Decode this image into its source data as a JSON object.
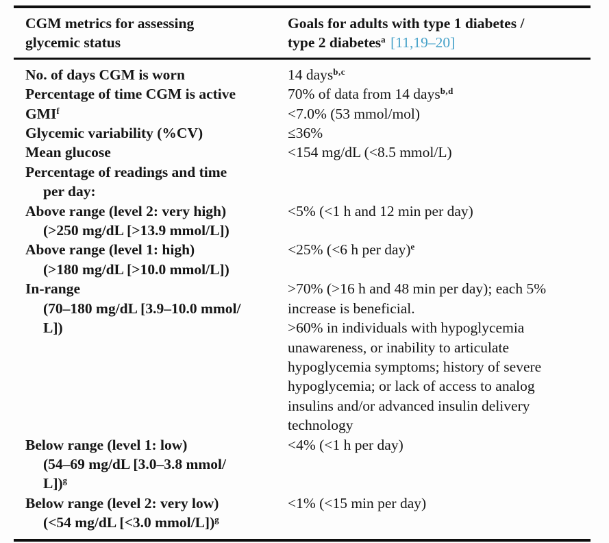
{
  "colors": {
    "text": "#161616",
    "rule": "#0e0e0e",
    "citation_link": "#45a1c8",
    "background": "#fdfdfd"
  },
  "table": {
    "header": {
      "col1_lines": [
        "CGM metrics for assessing",
        "glycemic status"
      ],
      "col2_line1": "Goals for adults with type 1 diabetes /",
      "col2_line2_main": "type 2 diabetes^{a}",
      "citation": "[11,19–20]"
    },
    "rows": [
      {
        "left": [
          "No. of days CGM is worn"
        ],
        "right": [
          "14 days^{b,c}"
        ]
      },
      {
        "left": [
          "Percentage of time CGM is active"
        ],
        "right": [
          "70% of data from 14 days^{b,d}"
        ]
      },
      {
        "left": [
          "GMI^{f}"
        ],
        "right": [
          "<7.0% (53 mmol/mol)"
        ]
      },
      {
        "left": [
          "Glycemic variability (%CV)"
        ],
        "right": [
          "≤36%"
        ]
      },
      {
        "left": [
          "Mean glucose"
        ],
        "right": [
          "<154 mg/dL (<8.5 mmol/L)"
        ]
      },
      {
        "left": [
          "Percentage of readings and time",
          "per day:"
        ],
        "right": []
      },
      {
        "left": [
          "Above range (level 2: very high)",
          "(>250 mg/dL [>13.9 mmol/L])"
        ],
        "right": [
          "<5% (<1 h and 12 min per day)"
        ]
      },
      {
        "left": [
          "Above range (level 1: high)",
          "(>180 mg/dL [>10.0 mmol/L])"
        ],
        "right": [
          "<25% (<6 h per day)^{e}"
        ]
      },
      {
        "left": [
          "In-range",
          "(70–180 mg/dL [3.9–10.0 mmol/",
          "L])"
        ],
        "right": [
          ">70% (>16 h and 48 min per day); each 5%",
          "increase is beneficial.",
          ">60% in individuals with hypoglycemia",
          "unawareness, or inability to articulate",
          "hypoglycemia symptoms; history of severe",
          "hypoglycemia; or lack of access to analog",
          "insulins and/or advanced insulin delivery",
          "technology"
        ]
      },
      {
        "left": [
          "Below range (level 1: low)",
          "(54–69 mg/dL [3.0–3.8 mmol/",
          "L])^{g}"
        ],
        "right": [
          "<4% (<1 h per day)"
        ]
      },
      {
        "left": [
          "Below range (level 2: very low)",
          "(<54 mg/dL [<3.0 mmol/L])^{g}"
        ],
        "right": [
          "<1% (<15 min per day)"
        ]
      }
    ]
  }
}
